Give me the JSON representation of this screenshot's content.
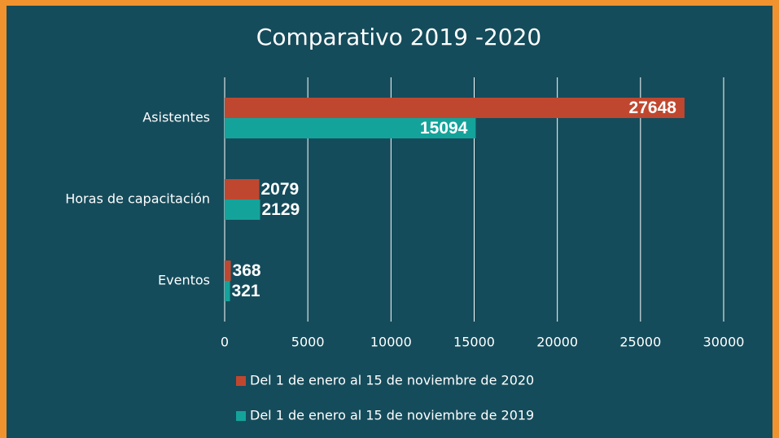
{
  "chart_data": {
    "type": "barh",
    "title": "Comparativo 2019 -2020",
    "categories": [
      "Asistentes",
      "Horas de capacitación",
      "Eventos"
    ],
    "series": [
      {
        "name": "Del 1 de enero al 15 de noviembre de 2020",
        "color": "#c0472f",
        "values": [
          27648,
          2079,
          368
        ]
      },
      {
        "name": "Del 1 de enero al 15 de noviembre de 2019",
        "color": "#14a39a",
        "values": [
          15094,
          2129,
          321
        ]
      }
    ],
    "xlim": [
      0,
      30000
    ],
    "xticks": [
      0,
      5000,
      10000,
      15000,
      20000,
      25000,
      30000
    ],
    "grid": true
  }
}
